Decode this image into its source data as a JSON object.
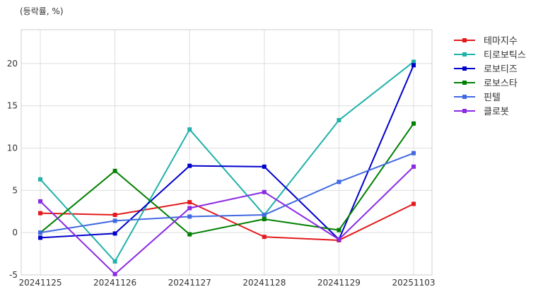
{
  "chart_data": {
    "type": "line",
    "title": "",
    "y_unit_label": "(등락률, %)",
    "xlabel": "",
    "ylabel": "",
    "categories": [
      "20241125",
      "20241126",
      "20241127",
      "20241128",
      "20241129",
      "20251103"
    ],
    "ylim": [
      -5,
      24
    ],
    "y_ticks": [
      -5,
      0,
      5,
      10,
      15,
      20
    ],
    "grid": true,
    "legend_position": "right",
    "series": [
      {
        "name": "테마지수",
        "color": "#e31a1c",
        "values": [
          2.3,
          2.1,
          3.6,
          -0.5,
          -0.9,
          3.4
        ]
      },
      {
        "name": "티로보틱스",
        "color": "#20b2aa",
        "values": [
          6.3,
          -3.4,
          12.2,
          2.1,
          13.3,
          20.2
        ]
      },
      {
        "name": "로보티즈",
        "color": "#0000cd",
        "values": [
          -0.6,
          -0.1,
          7.9,
          7.8,
          -0.8,
          19.8
        ]
      },
      {
        "name": "로보스타",
        "color": "#008000",
        "values": [
          0.0,
          7.3,
          -0.2,
          1.6,
          0.3,
          12.9
        ]
      },
      {
        "name": "핀텔",
        "color": "#4169e1",
        "values": [
          0.0,
          1.4,
          1.9,
          2.1,
          6.0,
          9.4
        ]
      },
      {
        "name": "클로봇",
        "color": "#8a2be2",
        "values": [
          3.7,
          -4.9,
          2.9,
          4.8,
          -0.8,
          7.8
        ]
      }
    ]
  }
}
